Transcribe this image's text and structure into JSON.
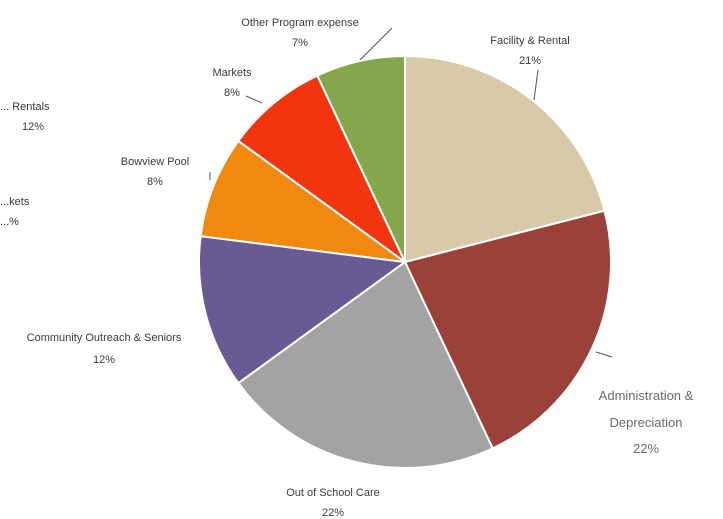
{
  "chart_data": {
    "type": "pie",
    "title": "",
    "slices": [
      {
        "label": "Facility & Rental",
        "value": 21,
        "pct_label": "21%",
        "color": "#d8c9a8"
      },
      {
        "label": "Administration & Depreciation",
        "value": 22,
        "pct_label": "22%",
        "color": "#9a4139"
      },
      {
        "label": "Out of School Care",
        "value": 22,
        "pct_label": "22%",
        "color": "#a3a3a3"
      },
      {
        "label": "Community Outreach & Seniors",
        "value": 12,
        "pct_label": "12%",
        "color": "#6a5a94"
      },
      {
        "label": "Bowview Pool",
        "value": 8,
        "pct_label": "8%",
        "color": "#f2890f"
      },
      {
        "label": "Markets",
        "value": 8,
        "pct_label": "8%",
        "color": "#f2350f"
      },
      {
        "label": "Other Program expense",
        "value": 7,
        "pct_label": "7%",
        "color": "#84a74e"
      }
    ],
    "cropped_labels": [
      {
        "line1": "... Rentals",
        "line2": "12%"
      },
      {
        "line1": "...kets",
        "line2": "...%"
      }
    ],
    "start": "12 o'clock",
    "direction": "clockwise",
    "legend": "none"
  }
}
